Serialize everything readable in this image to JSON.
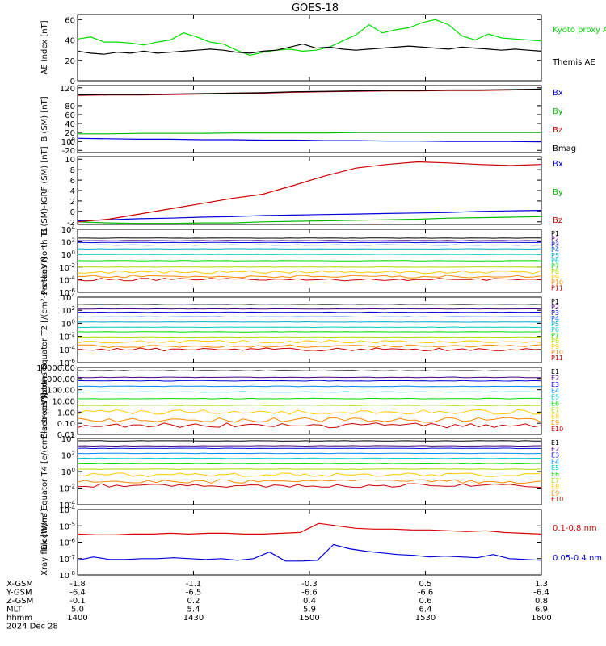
{
  "title": "GOES-18",
  "chart_data": [
    {
      "type": "line",
      "ylabel": "AE Index [nT]",
      "ylim": [
        0,
        65
      ],
      "yticks": [
        "0",
        "20",
        "40",
        "60"
      ],
      "series": [
        {
          "name": "Kyoto proxy AE",
          "color": "#00dd00",
          "values": [
            41,
            43,
            38,
            38,
            37,
            35,
            38,
            40,
            47,
            43,
            38,
            36,
            30,
            25,
            28,
            30,
            31,
            29,
            30,
            33,
            39,
            45,
            55,
            47,
            50,
            52,
            57,
            60,
            55,
            44,
            40,
            46,
            42,
            41,
            40,
            39
          ]
        },
        {
          "name": "Themis AE",
          "color": "#000000",
          "values": [
            29,
            27,
            26,
            28,
            27,
            29,
            27,
            28,
            29,
            30,
            31,
            30,
            28,
            27,
            29,
            30,
            33,
            36,
            32,
            33,
            31,
            30,
            31,
            32,
            33,
            34,
            33,
            32,
            31,
            33,
            32,
            31,
            30,
            31,
            30,
            29
          ]
        }
      ]
    },
    {
      "type": "line",
      "ylabel": "B (SM) [nT]",
      "ylim": [
        -25,
        125
      ],
      "yticks": [
        "-20",
        "0",
        "20",
        "40",
        "60",
        "80",
        "100",
        "120"
      ],
      "series": [
        {
          "name": "Bx",
          "color": "#0000dd",
          "values": [
            7,
            6,
            5,
            5,
            4,
            4,
            3,
            3,
            2,
            2,
            1,
            1,
            0,
            0,
            0,
            -1
          ]
        },
        {
          "name": "By",
          "color": "#00bb00",
          "values": [
            17,
            17,
            18,
            18,
            18,
            19,
            19,
            19,
            19,
            20,
            20,
            20,
            20,
            20,
            20,
            20
          ]
        },
        {
          "name": "Bz",
          "color": "#cc0000",
          "values": [
            103,
            104,
            104,
            105,
            106,
            107,
            108,
            110,
            111,
            112,
            113,
            113,
            114,
            114,
            115,
            116
          ]
        },
        {
          "name": "Bmag",
          "color": "#000000",
          "values": [
            104,
            105,
            105,
            106,
            107,
            108,
            109,
            111,
            112,
            113,
            114,
            114,
            115,
            115,
            116,
            117
          ]
        }
      ]
    },
    {
      "type": "line",
      "ylabel": "B (SM)-IGRF (SM) [nT]",
      "ylim": [
        -2.5,
        10.5
      ],
      "yticks": [
        "-2",
        "0",
        "2",
        "4",
        "6",
        "8",
        "10"
      ],
      "series": [
        {
          "name": "Bx",
          "color": "#0000dd",
          "values": [
            -1.8,
            -1.6,
            -1.4,
            -1.3,
            -1.1,
            -1.0,
            -0.8,
            -0.7,
            -0.6,
            -0.5,
            -0.4,
            -0.3,
            -0.2,
            0.0,
            0.1,
            0.2
          ]
        },
        {
          "name": "By",
          "color": "#00bb00",
          "values": [
            -2.0,
            -2.2,
            -2.3,
            -2.3,
            -2.2,
            -2.2,
            -2.0,
            -1.9,
            -1.8,
            -1.7,
            -1.6,
            -1.5,
            -1.3,
            -1.2,
            -1.1,
            -1.0
          ]
        },
        {
          "name": "Bz",
          "color": "#cc0000",
          "values": [
            -2.0,
            -1.5,
            -0.5,
            0.5,
            1.5,
            2.5,
            3.3,
            5.0,
            6.8,
            8.3,
            9.0,
            9.5,
            9.3,
            9.0,
            8.8,
            9.0
          ]
        }
      ]
    },
    {
      "type": "line",
      "ylabel": "Protons North T1",
      "yscale": "log",
      "ylim": [
        -6,
        4
      ],
      "yticks": [
        "10-6",
        "10-4",
        "10-2",
        "100",
        "102",
        "104"
      ],
      "legend": [
        "P1",
        "P2",
        "P3",
        "P4",
        "P5",
        "P6",
        "P7",
        "P8",
        "P9",
        "P10",
        "P11"
      ],
      "colors": [
        "#000000",
        "#4b0082",
        "#0000dd",
        "#0055ff",
        "#00aacc",
        "#00cccc",
        "#00dd00",
        "#aadd00",
        "#ffcc00",
        "#ff8800",
        "#cc0000"
      ],
      "levels": [
        2.6,
        2.2,
        1.9,
        1.5,
        0.9,
        0.0,
        -1.0,
        -2.0,
        -2.8,
        -3.5,
        -4.0
      ]
    },
    {
      "type": "line",
      "ylabel": "Protons Equator T2 [/(cm²-s-sr-keV)]",
      "yscale": "log",
      "ylim": [
        -6,
        4
      ],
      "yticks": [
        "10-6",
        "10-4",
        "10-2",
        "100",
        "102",
        "104"
      ],
      "legend": [
        "P1",
        "P2",
        "P3",
        "P4",
        "P5",
        "P6",
        "P7",
        "P8",
        "P9",
        "P10",
        "P11"
      ],
      "colors": [
        "#000000",
        "#4b0082",
        "#0000dd",
        "#0055ff",
        "#00aacc",
        "#00cccc",
        "#00dd00",
        "#aadd00",
        "#ffcc00",
        "#ff8800",
        "#cc0000"
      ],
      "levels": [
        2.9,
        2.2,
        1.7,
        1.0,
        0.2,
        -0.6,
        -1.3,
        -2.1,
        -2.8,
        -3.5,
        -4.0
      ]
    },
    {
      "type": "line",
      "ylabel": "Electrons North T3",
      "yscale": "log",
      "ylim": [
        -2,
        4
      ],
      "yticks": [
        "0.01",
        "0.10",
        "1.00",
        "10.00",
        "100.00",
        "1000.00",
        "10000.00"
      ],
      "legend": [
        "E1",
        "E2",
        "E3",
        "E4",
        "E5",
        "E6",
        "E7",
        "E8",
        "E9",
        "E10"
      ],
      "colors": [
        "#000000",
        "#4b0082",
        "#0000dd",
        "#0088ff",
        "#00cccc",
        "#00dd00",
        "#aadd00",
        "#ffcc00",
        "#ff8800",
        "#cc0000"
      ],
      "levels": [
        3.7,
        3.1,
        2.8,
        2.3,
        1.8,
        1.2,
        0.6,
        0.0,
        -0.7,
        -1.2
      ]
    },
    {
      "type": "line",
      "ylabel": "Electrons Equator T4 [e/(cm²-s-sr-keV)]",
      "yscale": "log",
      "ylim": [
        -4,
        4
      ],
      "yticks": [
        "10-4",
        "10-2",
        "100",
        "102",
        "104"
      ],
      "legend": [
        "E1",
        "E2",
        "E3",
        "E4",
        "E5",
        "E6",
        "E7",
        "E8",
        "E9",
        "E10"
      ],
      "colors": [
        "#000000",
        "#4b0082",
        "#0000dd",
        "#0088ff",
        "#00cccc",
        "#00dd00",
        "#aadd00",
        "#ffcc00",
        "#ff8800",
        "#cc0000"
      ],
      "levels": [
        3.7,
        3.1,
        2.8,
        2.2,
        1.6,
        1.0,
        0.3,
        -0.4,
        -1.2,
        -1.7
      ]
    },
    {
      "type": "line",
      "ylabel": "Xray flux [W/m²]",
      "yscale": "log",
      "ylim": [
        -8,
        -4
      ],
      "yticks": [
        "10-8",
        "10-7",
        "10-6",
        "10-5",
        "10-4"
      ],
      "series": [
        {
          "name": "0.1-0.8 nm",
          "color": "#dd0000",
          "values": [
            -5.5,
            -5.55,
            -5.55,
            -5.5,
            -5.5,
            -5.45,
            -5.5,
            -5.45,
            -5.45,
            -5.5,
            -5.5,
            -5.45,
            -5.4,
            -4.85,
            -5.0,
            -5.15,
            -5.2,
            -5.2,
            -5.25,
            -5.25,
            -5.3,
            -5.35,
            -5.3,
            -5.4,
            -5.45,
            -5.5
          ]
        },
        {
          "name": "0.05-0.4 nm",
          "color": "#0000dd",
          "values": [
            -7.1,
            -6.9,
            -7.05,
            -7.05,
            -7.0,
            -7.0,
            -6.95,
            -7.0,
            -7.05,
            -7.0,
            -7.1,
            -7.0,
            -6.6,
            -7.15,
            -7.15,
            -7.1,
            -6.15,
            -6.4,
            -6.55,
            -6.65,
            -6.75,
            -6.8,
            -6.9,
            -6.85,
            -6.9,
            -6.95,
            -6.75,
            -7.0,
            -7.05,
            -7.1
          ]
        }
      ]
    }
  ],
  "xaxis": {
    "rows": [
      {
        "label": "X-GSM",
        "values": [
          "-1.8",
          "-1.1",
          "-0.3",
          "0.5",
          "1.3"
        ]
      },
      {
        "label": "Y-GSM",
        "values": [
          "-6.4",
          "-6.5",
          "-6.6",
          "-6.6",
          "-6.4"
        ]
      },
      {
        "label": "Z-GSM",
        "values": [
          "-0.1",
          "0.2",
          "0.4",
          "0.6",
          "0.8"
        ]
      },
      {
        "label": "MLT",
        "values": [
          "5.0",
          "5.4",
          "5.9",
          "6.4",
          "6.9"
        ]
      },
      {
        "label": "hhmm",
        "values": [
          "1400",
          "1430",
          "1500",
          "1530",
          "1600"
        ]
      }
    ],
    "date": "2024 Dec 28"
  }
}
